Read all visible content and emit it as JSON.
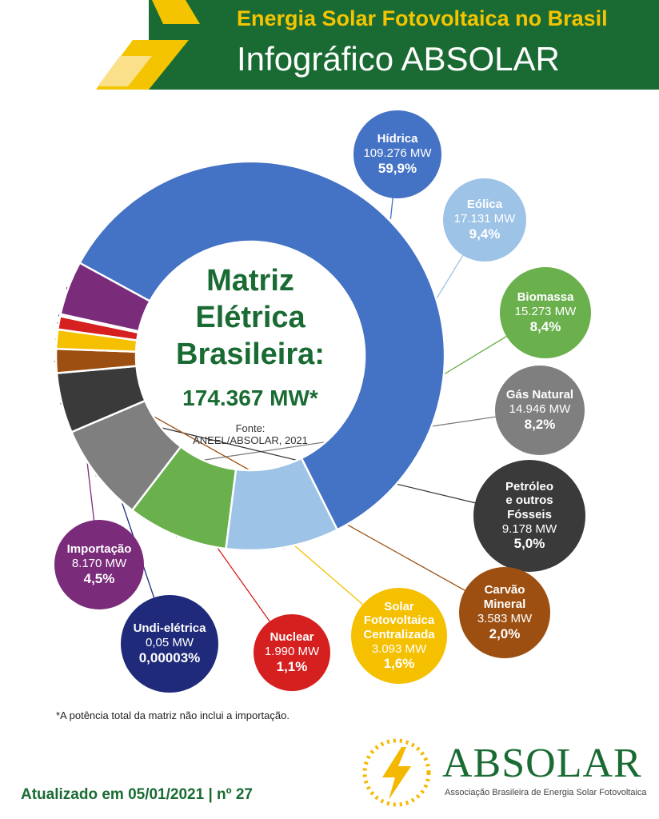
{
  "header": {
    "title": "Energia Solar Fotovoltaica no Brasil",
    "subtitle": "Infográfico ABSOLAR"
  },
  "center": {
    "line1": "Matriz",
    "line2": "Elétrica",
    "line3": "Brasileira:",
    "total": "174.367 MW*",
    "source_line1": "Fonte:",
    "source_line2": "ANEEL/ABSOLAR, 2021"
  },
  "chart_data": {
    "type": "pie",
    "title": "Matriz Elétrica Brasileira: 174.367 MW*",
    "slices": [
      {
        "name": "Hídrica",
        "mw": "109.276 MW",
        "percent_label": "59,9%",
        "value": 59.9,
        "color": "#4472c4"
      },
      {
        "name": "Eólica",
        "mw": "17.131 MW",
        "percent_label": "9,4%",
        "value": 9.4,
        "color": "#9dc3e6"
      },
      {
        "name": "Biomassa",
        "mw": "15.273 MW",
        "percent_label": "8,4%",
        "value": 8.4,
        "color": "#6ab04c"
      },
      {
        "name": "Gás Natural",
        "mw": "14.946 MW",
        "percent_label": "8,2%",
        "value": 8.2,
        "color": "#7f7f7f"
      },
      {
        "name": "Petróleo e outros Fósseis",
        "name_lines": [
          "Petróleo",
          "e outros",
          "Fósseis"
        ],
        "mw": "9.178 MW",
        "percent_label": "5,0%",
        "value": 5.0,
        "color": "#3a3a3a"
      },
      {
        "name": "Carvão Mineral",
        "name_lines": [
          "Carvão",
          "Mineral"
        ],
        "mw": "3.583 MW",
        "percent_label": "2,0%",
        "value": 2.0,
        "color": "#9c4f10"
      },
      {
        "name": "Solar Fotovoltaica Centralizada",
        "name_lines": [
          "Solar",
          "Fotovoltaica",
          "Centralizada"
        ],
        "mw": "3.093 MW",
        "percent_label": "1,6%",
        "value": 1.6,
        "color": "#f5c000"
      },
      {
        "name": "Nuclear",
        "mw": "1.990 MW",
        "percent_label": "1,1%",
        "value": 1.1,
        "color": "#d62020"
      },
      {
        "name": "Undi-elétrica",
        "mw": "0,05 MW",
        "percent_label": "0,00003%",
        "value": 3e-05,
        "color": "#1f2a7a"
      },
      {
        "name": "Importação",
        "mw": "8.170 MW",
        "percent_label": "4,5%",
        "value": 4.5,
        "color": "#7a2c7a"
      }
    ]
  },
  "footnote": "*A potência total da matriz não inclui a importação.",
  "footer": {
    "updated": "Atualizado em 05/01/2021 | nº 27",
    "logo_name": "ABSOLAR",
    "logo_desc": "Associação Brasileira de Energia Solar Fotovoltaica"
  },
  "colors": {
    "brand_green": "#1a6b33",
    "brand_yellow": "#f5c400"
  }
}
